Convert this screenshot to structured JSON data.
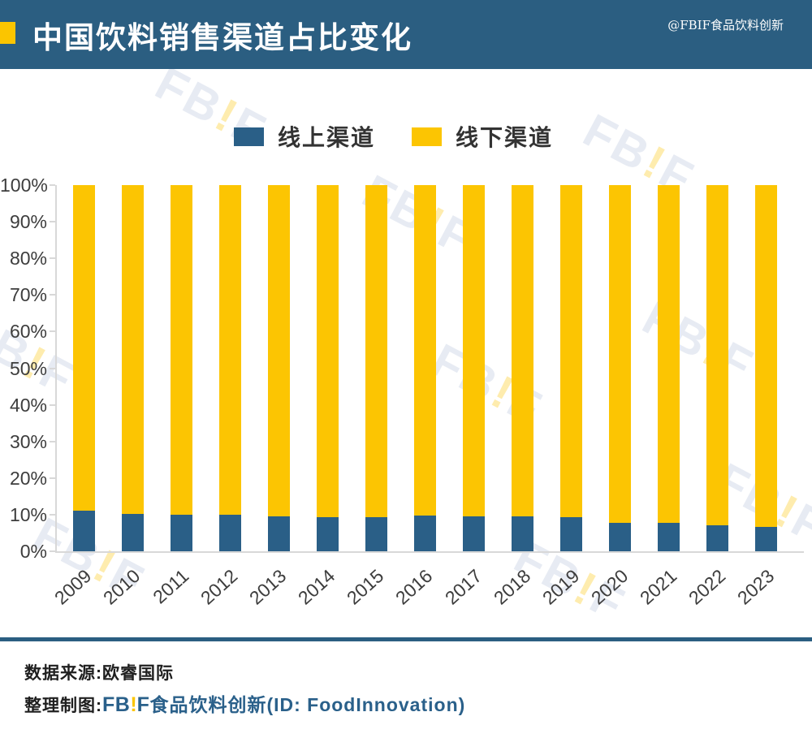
{
  "header": {
    "title": "中国饮料销售渠道占比变化",
    "handle": "@FBIF食品饮料创新"
  },
  "legend": {
    "items": [
      {
        "label": "线上渠道",
        "color": "#2A5F87"
      },
      {
        "label": "线下渠道",
        "color": "#FCC502"
      }
    ]
  },
  "chart_data": {
    "type": "bar",
    "stacked": true,
    "title": "中国饮料销售渠道占比变化",
    "categories": [
      "2009",
      "2010",
      "2011",
      "2012",
      "2013",
      "2014",
      "2015",
      "2016",
      "2017",
      "2018",
      "2019",
      "2020",
      "2021",
      "2022",
      "2023"
    ],
    "series": [
      {
        "name": "线上渠道",
        "color": "#2A5F87",
        "values": [
          11,
          10.2,
          10,
          10,
          9.6,
          9.4,
          9.4,
          9.7,
          9.6,
          9.5,
          9.4,
          7.7,
          7.7,
          7.1,
          6.6
        ]
      },
      {
        "name": "线下渠道",
        "color": "#FCC502",
        "values": [
          89,
          89.8,
          90,
          90,
          90.4,
          90.6,
          90.6,
          90.3,
          90.4,
          90.5,
          90.6,
          92.3,
          92.3,
          92.9,
          93.4
        ]
      }
    ],
    "xlabel": "",
    "ylabel": "",
    "ylim": [
      0,
      100
    ],
    "yticks": [
      "0%",
      "10%",
      "20%",
      "30%",
      "40%",
      "50%",
      "60%",
      "70%",
      "80%",
      "90%",
      "100%"
    ],
    "grid": false,
    "legend_position": "top"
  },
  "watermark": {
    "part1": "FB",
    "bang": "!",
    "part2": "F"
  },
  "footer": {
    "source": "数据来源:欧睿国际",
    "credit_prefix": "整理制图:",
    "credit_fb": "FB",
    "credit_bang": "!",
    "credit_f": "F",
    "credit_rest": "食品饮料创新(ID: FoodInnovation)"
  },
  "colors": {
    "header_bg": "#2B5E81",
    "accent_yellow": "#FBC500",
    "bar_blue": "#2A5F87",
    "bar_yellow": "#FCC502",
    "axis_gray": "#D8D8D8",
    "text_dark": "#333333"
  }
}
